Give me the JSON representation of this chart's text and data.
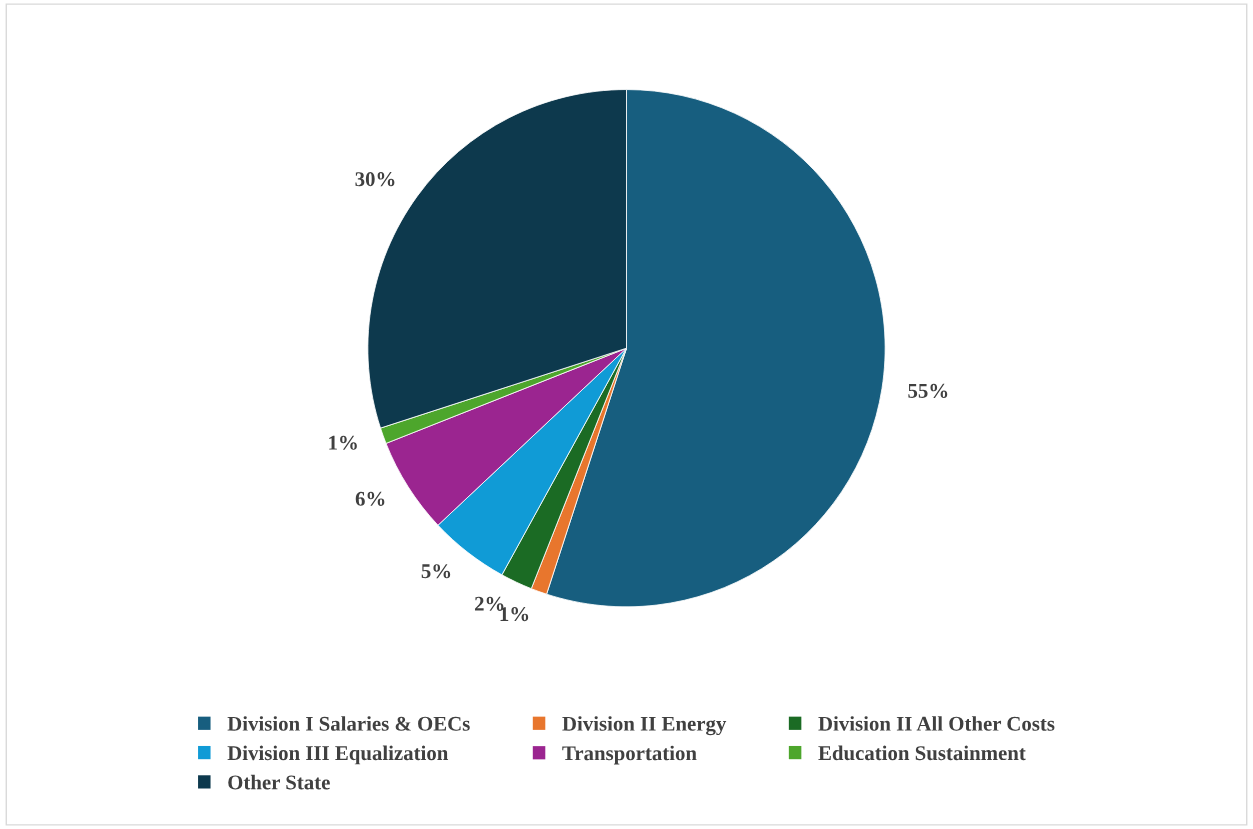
{
  "chart_data": {
    "type": "pie",
    "categories": [
      "Division I Salaries & OECs",
      "Division II Energy",
      "Division II All Other Costs",
      "Division III Equalization",
      "Transportation",
      "Education Sustainment",
      "Other State"
    ],
    "values": [
      55,
      1,
      2,
      5,
      6,
      1,
      30
    ],
    "colors": [
      "#175e7f",
      "#e8762d",
      "#1b6b24",
      "#109bd6",
      "#9b2590",
      "#4da62c",
      "#0d394d"
    ],
    "value_labels": [
      "55%",
      "1%",
      "2%",
      "5%",
      "6%",
      "1%",
      "30%"
    ],
    "legend": "bottom"
  }
}
